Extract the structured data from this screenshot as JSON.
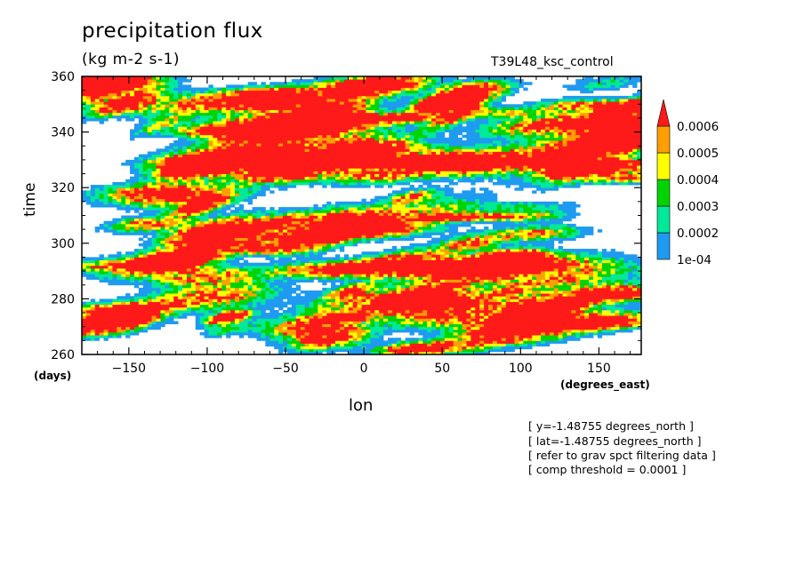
{
  "chart_data": {
    "type": "heatmap",
    "title": "precipitation flux",
    "units": "(kg m-2 s-1)",
    "run_label": "T39L48_ksc_control",
    "xlabel": "lon",
    "x_units": "(degrees_east)",
    "y_units": "(days)",
    "ylabel": "time",
    "xlim": [
      -180,
      177
    ],
    "ylim": [
      260,
      360
    ],
    "x_ticks": [
      -150,
      -100,
      -50,
      0,
      50,
      100,
      150
    ],
    "y_ticks": [
      260,
      280,
      300,
      320,
      340,
      360
    ],
    "colorbar": {
      "levels": [
        0.0001,
        0.0002,
        0.0003,
        0.0004,
        0.0005,
        0.0006
      ],
      "tick_labels": [
        "1e-04",
        "0.0002",
        "0.0003",
        "0.0004",
        "0.0005",
        "0.0006"
      ],
      "colors": [
        "#1e9bf0",
        "#00e89a",
        "#00d400",
        "#ffff00",
        "#ff9f00",
        "#ff1a1a"
      ],
      "extend_max": true
    },
    "info_lines": [
      "[ y=-1.48755 degrees_north ]",
      "[ lat=-1.48755 degrees_north ]",
      "[ refer to grav spct filtering data ]",
      "[ comp threshold = 0.0001 ]"
    ]
  }
}
